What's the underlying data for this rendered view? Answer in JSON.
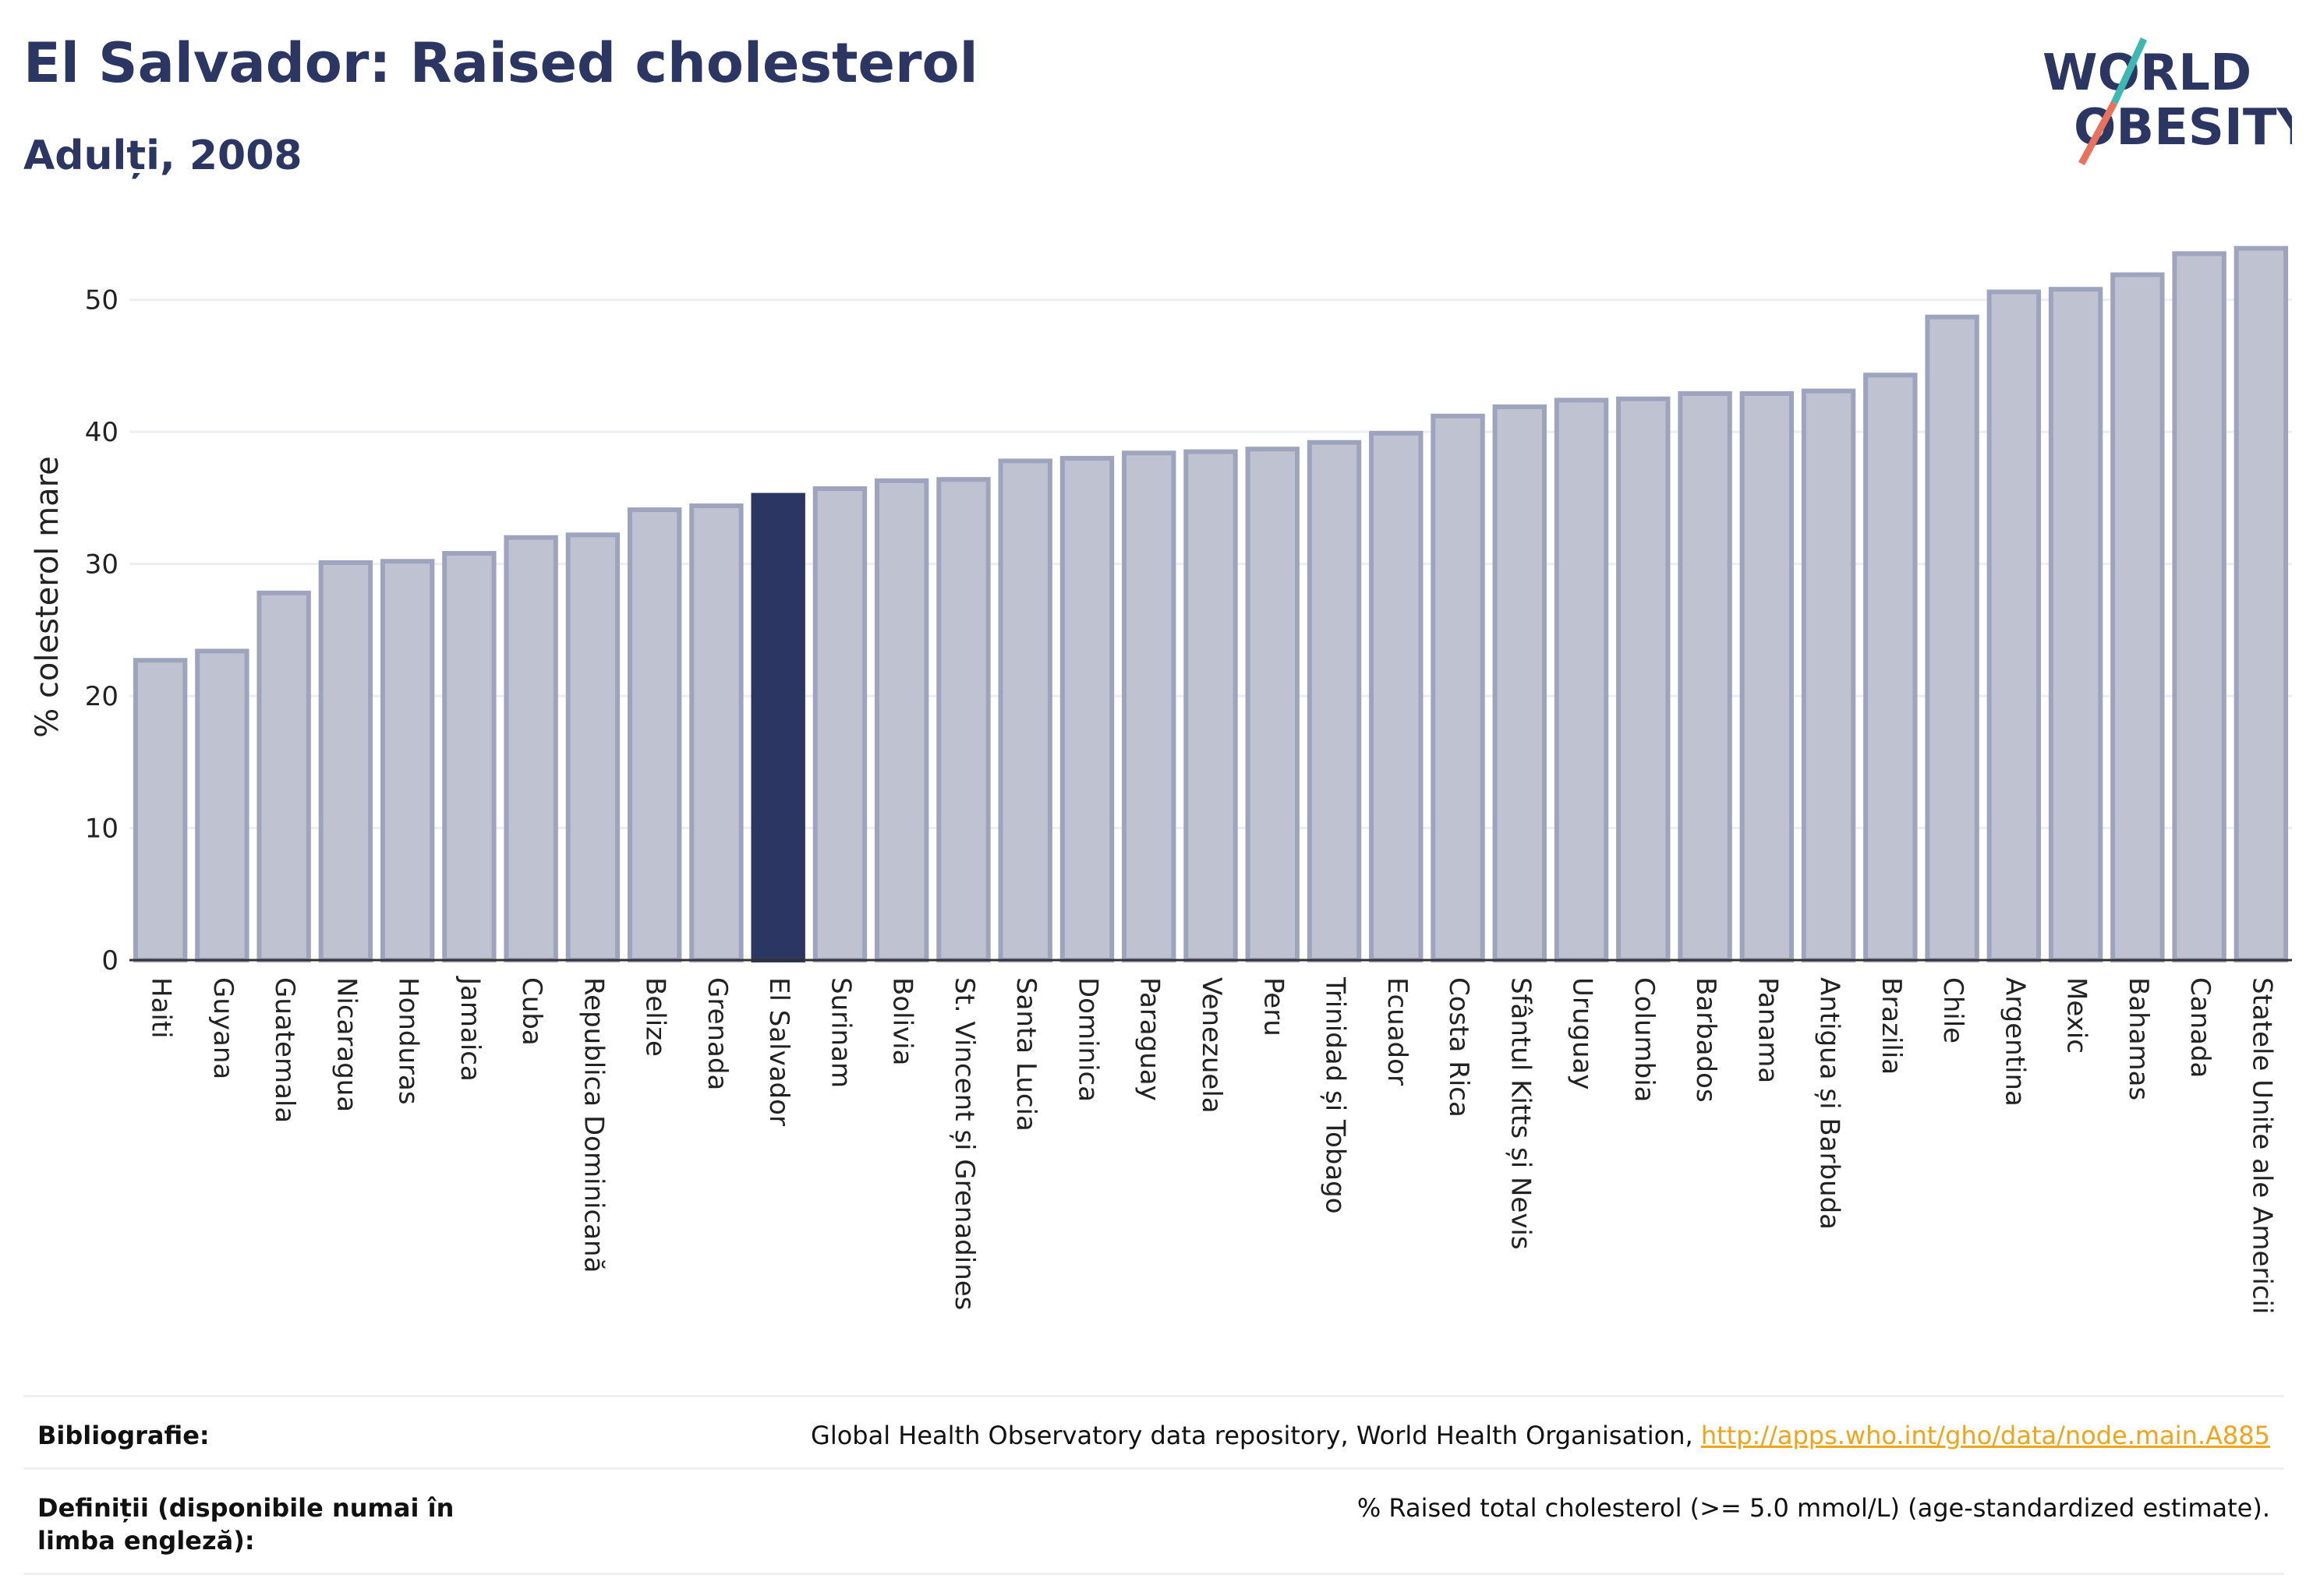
{
  "header": {
    "title": "El Salvador: Raised cholesterol",
    "subtitle": "Adulți, 2008"
  },
  "logo": {
    "line1": "WORLD",
    "line2": "OBESITY"
  },
  "chart_data": {
    "type": "bar",
    "title": "El Salvador: Raised cholesterol",
    "subtitle": "Adulți, 2008",
    "ylabel": "% colesterol mare",
    "xlabel": "",
    "ylim": [
      0,
      55
    ],
    "yticks": [
      0,
      10,
      20,
      30,
      40,
      50
    ],
    "grid": true,
    "highlight": "El Salvador",
    "colors": {
      "bar": "#bfc3d1",
      "bar_edge": "#9ea4bd",
      "highlight": "#2b3663"
    },
    "categories": [
      "Haiti",
      "Guyana",
      "Guatemala",
      "Nicaragua",
      "Honduras",
      "Jamaica",
      "Cuba",
      "Republica Dominicană",
      "Belize",
      "Grenada",
      "El Salvador",
      "Surinam",
      "Bolivia",
      "St. Vincent și Grenadines",
      "Santa Lucia",
      "Dominica",
      "Paraguay",
      "Venezuela",
      "Peru",
      "Trinidad și Tobago",
      "Ecuador",
      "Costa Rica",
      "Sfântul Kitts și Nevis",
      "Uruguay",
      "Columbia",
      "Barbados",
      "Panama",
      "Antigua și Barbuda",
      "Brazilia",
      "Chile",
      "Argentina",
      "Mexic",
      "Bahamas",
      "Canada",
      "Statele Unite ale Americii"
    ],
    "values": [
      22.7,
      23.4,
      27.8,
      30.1,
      30.2,
      30.8,
      32.0,
      32.2,
      34.1,
      34.4,
      35.2,
      35.7,
      36.3,
      36.4,
      37.8,
      38.0,
      38.4,
      38.5,
      38.7,
      39.2,
      39.9,
      41.2,
      41.9,
      42.4,
      42.5,
      42.9,
      42.9,
      43.1,
      44.3,
      48.7,
      50.6,
      50.8,
      51.9,
      53.5,
      53.9
    ]
  },
  "footer": {
    "bibliography_label": "Bibliografie:",
    "bibliography_text": "Global Health Observatory data repository, World Health Organisation, ",
    "bibliography_link": "http://apps.who.int/gho/data/node.main.A885",
    "definitions_label": "Definiții (disponibile numai în limba engleză):",
    "definitions_text": "% Raised total cholesterol (>= 5.0 mmol/L) (age-standardized estimate)."
  }
}
